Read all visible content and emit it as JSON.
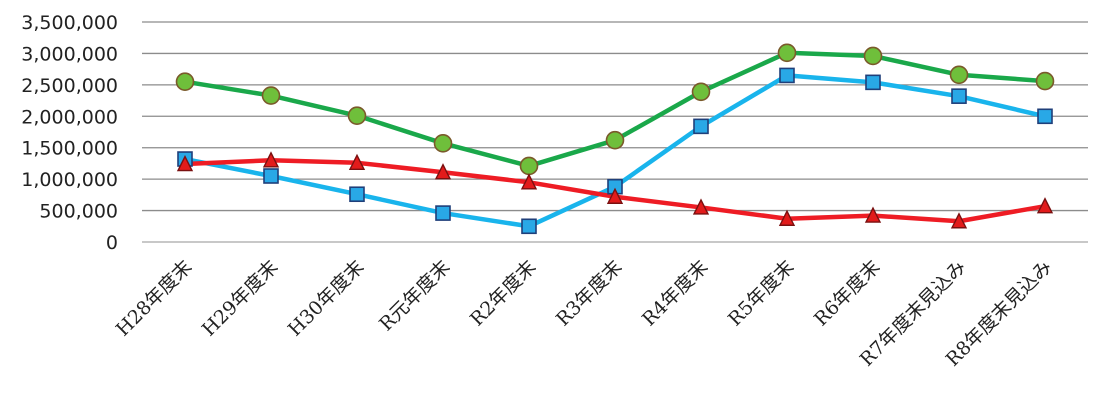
{
  "chart_data": {
    "type": "line",
    "title": "",
    "xlabel": "",
    "ylabel": "",
    "categories": [
      "H28年度末",
      "H29年度末",
      "H30年度末",
      "R元年度末",
      "R2年度末",
      "R3年度末",
      "R4年度末",
      "R5年度末",
      "R6年度末",
      "R7年度末見込み",
      "R8年度末見込み"
    ],
    "ylim": [
      0,
      3500000
    ],
    "yticks": [
      0,
      500000,
      1000000,
      1500000,
      2000000,
      2500000,
      3000000,
      3500000
    ],
    "ytick_labels": [
      "0",
      "500,000",
      "1,000,000",
      "1,500,000",
      "2,000,000",
      "2,500,000",
      "3,000,000",
      "3,500,000"
    ],
    "grid": true,
    "legend": "none",
    "series": [
      {
        "color": "#1aa84a",
        "marker": "circle",
        "values": [
          2550000,
          2330000,
          2010000,
          1570000,
          1210000,
          1620000,
          2390000,
          3010000,
          2960000,
          2660000,
          2560000
        ]
      },
      {
        "color": "#19b4ec",
        "marker": "square",
        "values": [
          1320000,
          1050000,
          760000,
          460000,
          250000,
          880000,
          1840000,
          2650000,
          2540000,
          2320000,
          2000000
        ]
      },
      {
        "color": "#ee1c24",
        "marker": "triangle",
        "values": [
          1240000,
          1300000,
          1260000,
          1110000,
          950000,
          720000,
          550000,
          370000,
          420000,
          330000,
          570000
        ]
      }
    ]
  }
}
